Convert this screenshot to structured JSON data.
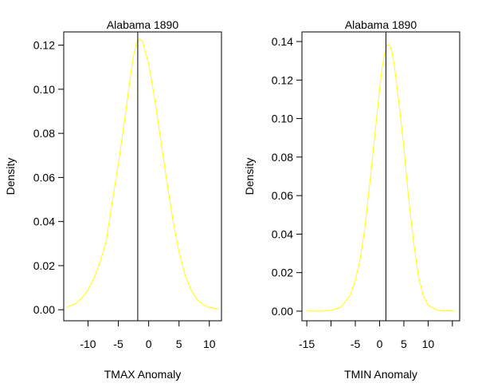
{
  "chart_data": [
    {
      "type": "line",
      "title": "Alabama 1890",
      "xlabel": "TMAX Anomaly",
      "ylabel": "Density",
      "xlim": [
        -14,
        12
      ],
      "ylim": [
        -0.005,
        0.126
      ],
      "x_ticks": [
        -10,
        -5,
        0,
        5,
        10
      ],
      "x_tick_labels": [
        "-10",
        "-5",
        "0",
        "5",
        "10"
      ],
      "y_ticks": [
        0.0,
        0.02,
        0.04,
        0.06,
        0.08,
        0.1,
        0.12
      ],
      "y_tick_labels": [
        "0.00",
        "0.02",
        "0.04",
        "0.06",
        "0.08",
        "0.10",
        "0.12"
      ],
      "series": [
        {
          "color": "#ffff00",
          "x": [
            -13.5,
            -12,
            -11,
            -10,
            -9,
            -8,
            -7,
            -6,
            -5,
            -4,
            -3,
            -2.5,
            -2,
            -1.5,
            -1,
            0,
            1,
            2,
            3,
            4,
            5,
            6,
            7,
            8,
            9,
            10,
            11.5
          ],
          "y": [
            0.0011,
            0.0029,
            0.0053,
            0.009,
            0.0144,
            0.0217,
            0.031,
            0.049,
            0.066,
            0.0853,
            0.106,
            0.115,
            0.121,
            0.1228,
            0.1215,
            0.1115,
            0.0955,
            0.0768,
            0.0578,
            0.0405,
            0.0262,
            0.0158,
            0.0089,
            0.0046,
            0.0022,
            0.001,
            0.0003
          ]
        }
      ],
      "vline_x": -1.8,
      "grid": false,
      "legend": "none"
    },
    {
      "type": "line",
      "title": "Alabama 1890",
      "xlabel": "TMIN Anomaly",
      "ylabel": "Density",
      "xlim": [
        -16,
        16.5
      ],
      "ylim": [
        -0.005,
        0.145
      ],
      "x_ticks": [
        -15,
        -10,
        -5,
        0,
        5,
        10,
        15
      ],
      "x_tick_labels": [
        "-15",
        "",
        "-5",
        "0",
        "5",
        "10",
        ""
      ],
      "y_ticks": [
        0.0,
        0.02,
        0.04,
        0.06,
        0.08,
        0.1,
        0.12,
        0.14
      ],
      "y_tick_labels": [
        "0.00",
        "0.02",
        "0.04",
        "0.06",
        "0.08",
        "0.10",
        "0.12",
        "0.14"
      ],
      "series": [
        {
          "color": "#ffff00",
          "x": [
            -15,
            -12,
            -10,
            -8,
            -6,
            -5,
            -4,
            -3,
            -2,
            -1,
            0,
            0.5,
            1,
            1.5,
            2,
            2.5,
            3,
            4,
            5,
            6,
            7,
            8,
            9,
            10,
            12,
            15.5
          ],
          "y": [
            0.0,
            0.0,
            0.0004,
            0.002,
            0.0085,
            0.016,
            0.027,
            0.044,
            0.067,
            0.091,
            0.115,
            0.1258,
            0.1335,
            0.138,
            0.1385,
            0.135,
            0.128,
            0.108,
            0.085,
            0.058,
            0.036,
            0.018,
            0.008,
            0.003,
            0.0004,
            0.0
          ]
        }
      ],
      "vline_x": 1.3,
      "grid": false,
      "legend": "none"
    }
  ]
}
